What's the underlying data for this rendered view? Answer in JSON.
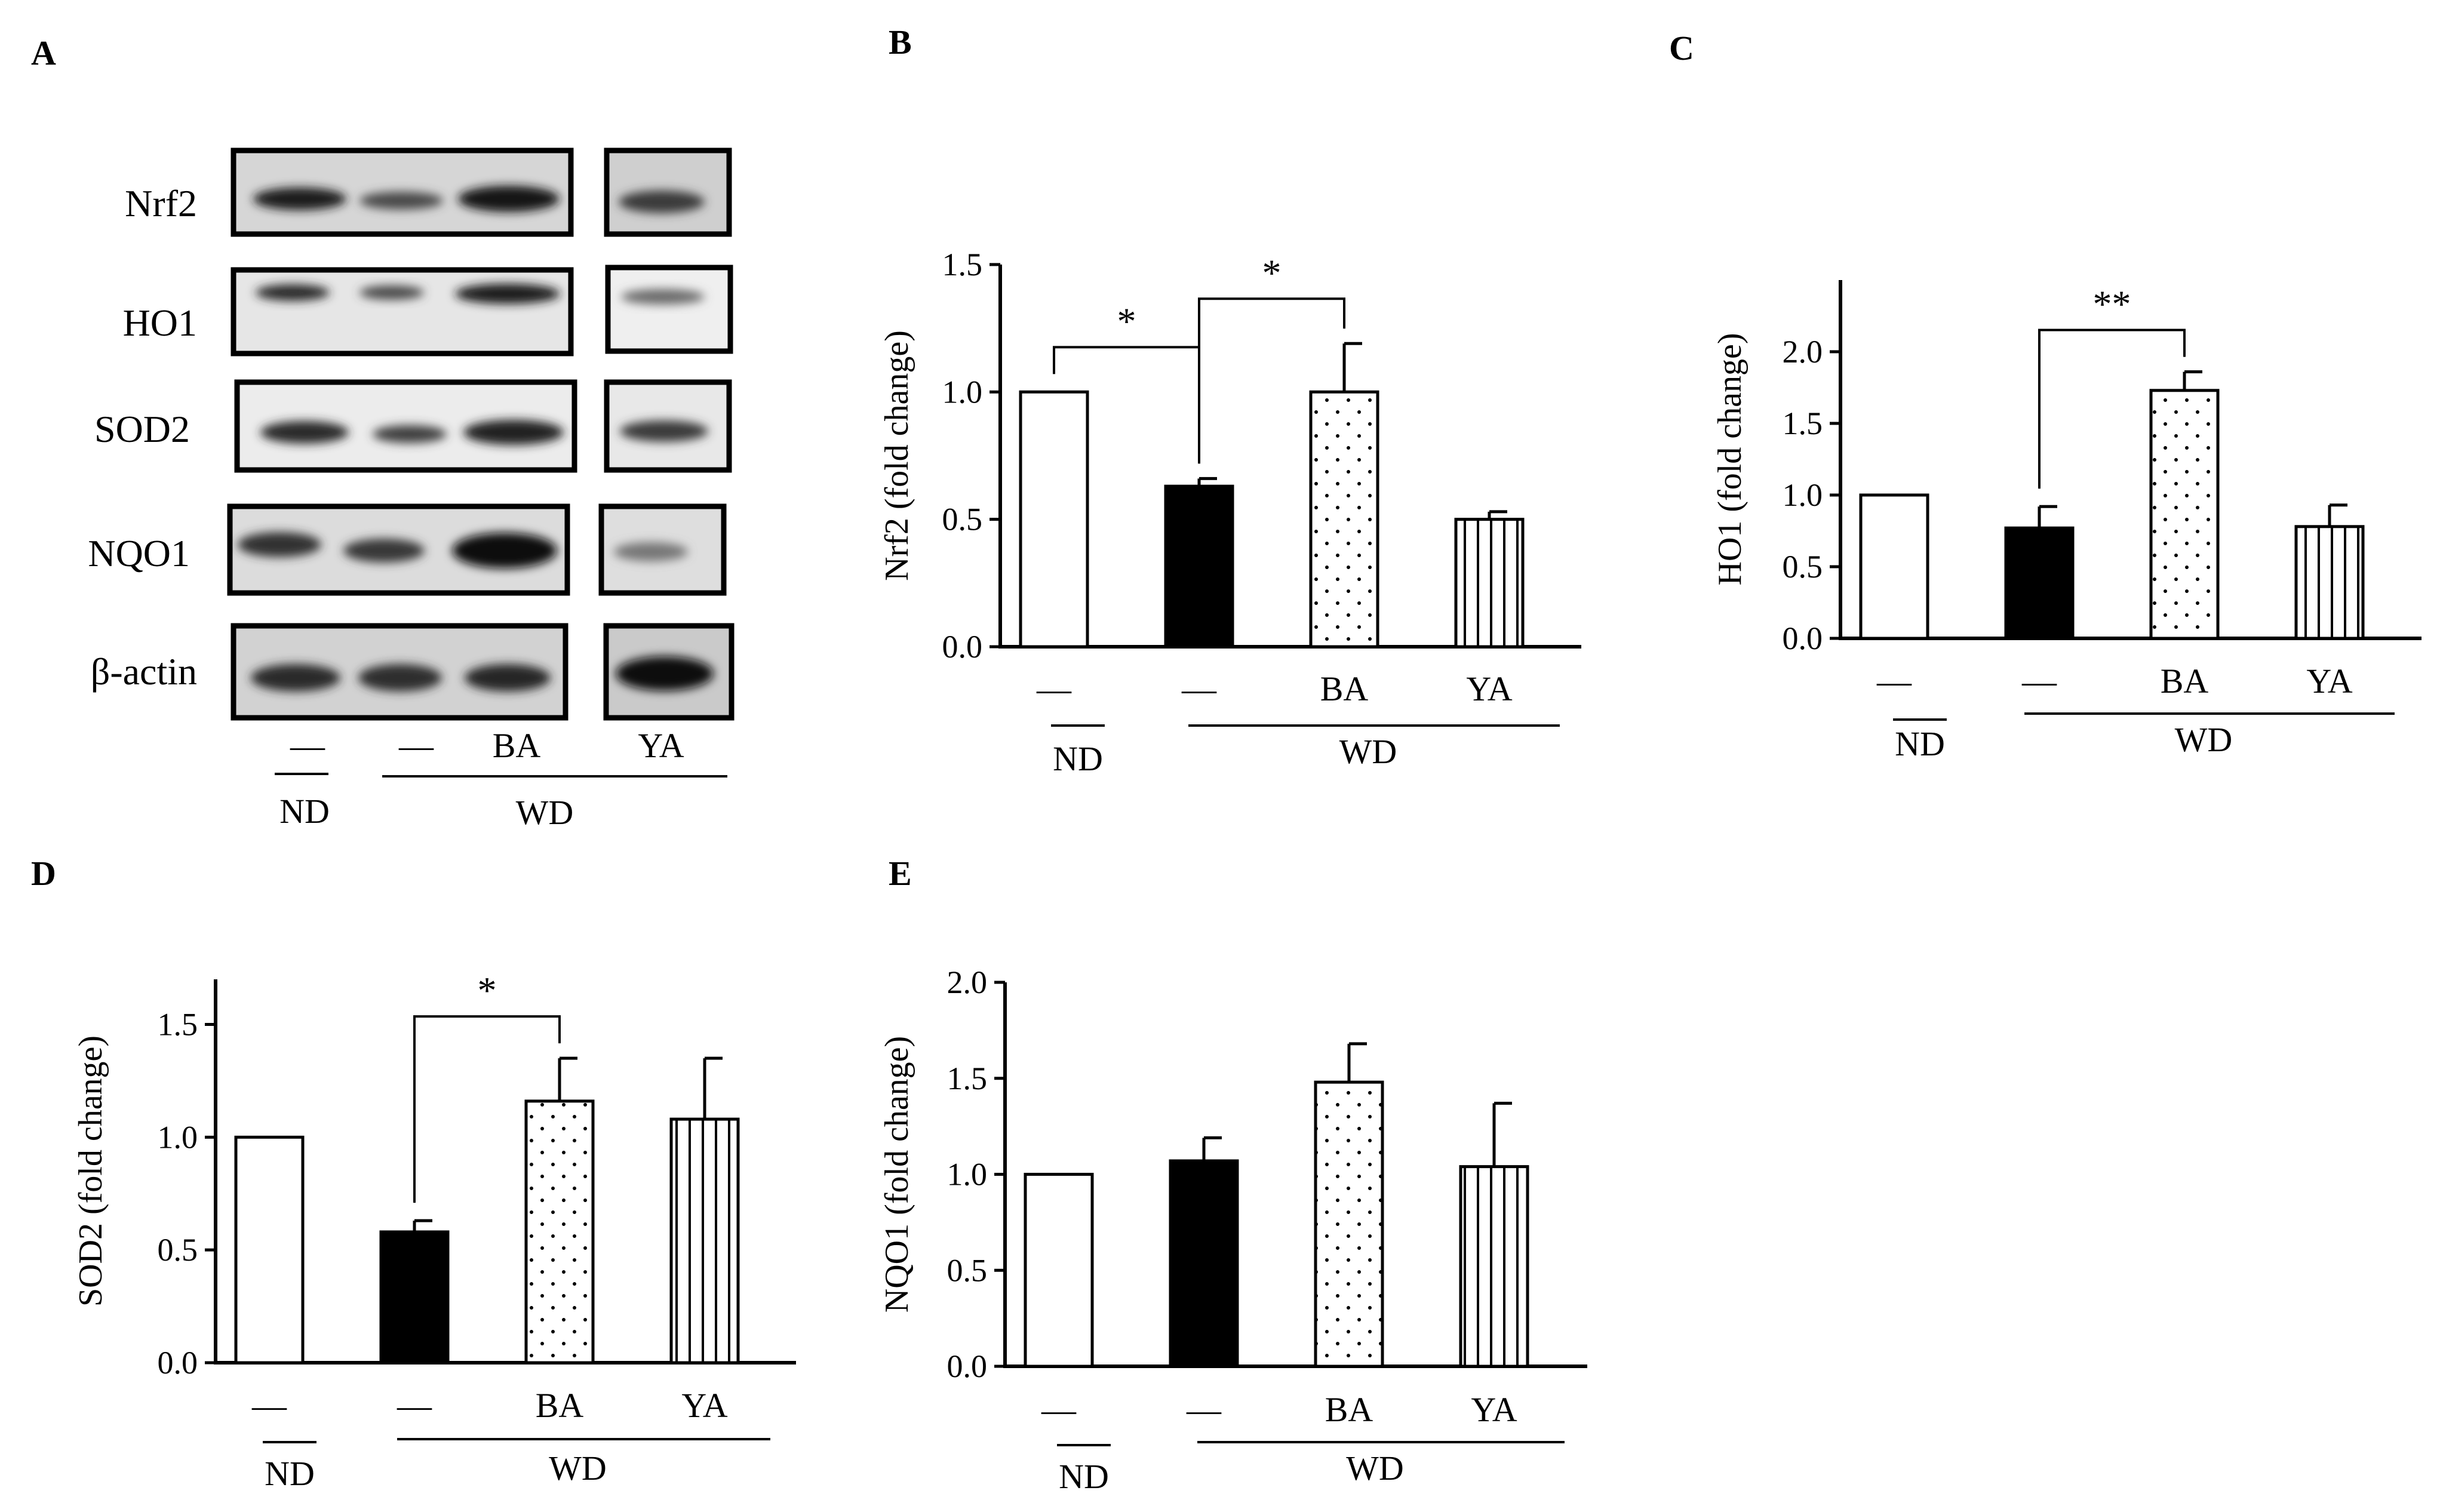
{
  "panel_a": {
    "label": "A",
    "proteins": [
      "Nrf2",
      "HO1",
      "SOD2",
      "NQO1",
      "β-actin"
    ],
    "lanes": [
      "—",
      "—",
      "BA",
      "YA"
    ],
    "group_nd": "ND",
    "group_wd": "WD"
  },
  "chart_data": [
    {
      "panel": "B",
      "type": "bar",
      "ylabel": "Nrf2 (fold change)",
      "categories": [
        "—",
        "—",
        "BA",
        "YA"
      ],
      "fills": [
        "white",
        "black",
        "dots",
        "vstripes"
      ],
      "values": [
        1.0,
        0.63,
        1.0,
        0.5
      ],
      "errors": [
        0.0,
        0.03,
        0.19,
        0.03
      ],
      "ylim": [
        0,
        1.5
      ],
      "yticks": [
        "0.0",
        "0.5",
        "1.0",
        "1.5"
      ],
      "groups": {
        "nd": "ND",
        "wd": "WD"
      },
      "significance": [
        {
          "from": 0,
          "to": 1,
          "label": "*"
        },
        {
          "from": 1,
          "to": 2,
          "label": "*"
        }
      ]
    },
    {
      "panel": "C",
      "type": "bar",
      "ylabel": "HO1 (fold change)",
      "categories": [
        "—",
        "—",
        "BA",
        "YA"
      ],
      "fills": [
        "white",
        "black",
        "dots",
        "vstripes"
      ],
      "values": [
        1.0,
        0.77,
        1.73,
        0.78
      ],
      "errors": [
        0.0,
        0.15,
        0.13,
        0.15
      ],
      "ylim": [
        0,
        2.5
      ],
      "yticks": [
        "0.0",
        "0.5",
        "1.0",
        "1.5",
        "2.0"
      ],
      "groups": {
        "nd": "ND",
        "wd": "WD"
      },
      "significance": [
        {
          "from": 1,
          "to": 2,
          "label": "**"
        }
      ]
    },
    {
      "panel": "D",
      "type": "bar",
      "ylabel": "SOD2 (fold change)",
      "categories": [
        "—",
        "—",
        "BA",
        "YA"
      ],
      "fills": [
        "white",
        "black",
        "dots",
        "vstripes"
      ],
      "values": [
        1.0,
        0.58,
        1.16,
        1.08
      ],
      "errors": [
        0.0,
        0.05,
        0.19,
        0.27
      ],
      "ylim": [
        0,
        1.7
      ],
      "yticks": [
        "0.0",
        "0.5",
        "1.0",
        "1.5"
      ],
      "groups": {
        "nd": "ND",
        "wd": "WD"
      },
      "significance": [
        {
          "from": 1,
          "to": 2,
          "label": "*"
        }
      ]
    },
    {
      "panel": "E",
      "type": "bar",
      "ylabel": "NQO1 (fold change)",
      "categories": [
        "—",
        "—",
        "BA",
        "YA"
      ],
      "fills": [
        "white",
        "black",
        "dots",
        "vstripes"
      ],
      "values": [
        1.0,
        1.07,
        1.48,
        1.04
      ],
      "errors": [
        0.0,
        0.12,
        0.2,
        0.33
      ],
      "ylim": [
        0,
        2.0
      ],
      "yticks": [
        "0.0",
        "0.5",
        "1.0",
        "1.5",
        "2.0"
      ],
      "groups": {
        "nd": "ND",
        "wd": "WD"
      },
      "significance": []
    }
  ]
}
